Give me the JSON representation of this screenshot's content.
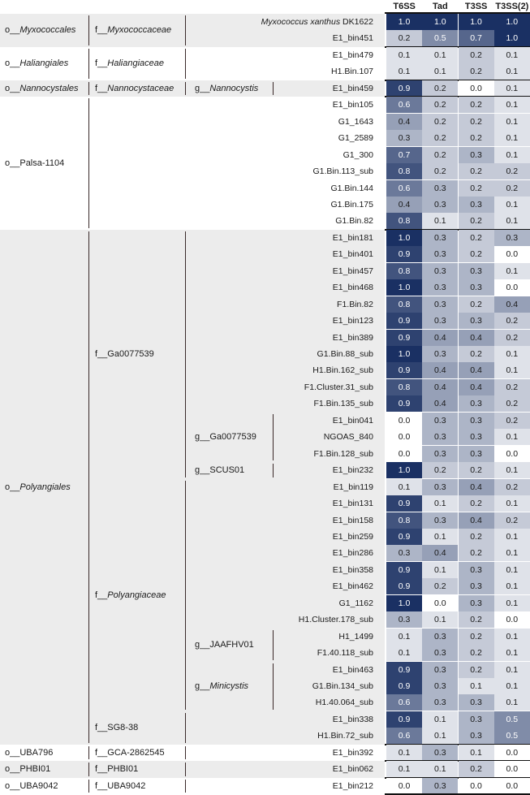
{
  "chart_data": {
    "type": "heatmap",
    "columns": [
      "T6SS",
      "Tad",
      "T3SS",
      "T3SS(2)"
    ],
    "groups": [
      {
        "order": "o__Myxococcales",
        "order_italic": true,
        "families": [
          {
            "family": "f__Myxococcaceae",
            "family_italic": true,
            "genera": [
              {
                "genus": "",
                "rows": [
                  {
                    "bin": "Myxococcus xanthus DK1622",
                    "bin_italic": true,
                    "values": [
                      1.0,
                      1.0,
                      1.0,
                      1.0
                    ]
                  },
                  {
                    "bin": "E1_bin451",
                    "values": [
                      0.2,
                      0.5,
                      0.7,
                      1.0
                    ]
                  }
                ]
              }
            ]
          }
        ]
      },
      {
        "order": "o__Haliangiales",
        "order_italic": true,
        "families": [
          {
            "family": "f__Haliangiaceae",
            "family_italic": true,
            "genera": [
              {
                "genus": "",
                "rows": [
                  {
                    "bin": "E1_bin479",
                    "values": [
                      0.1,
                      0.1,
                      0.2,
                      0.1
                    ]
                  },
                  {
                    "bin": "H1.Bin.107",
                    "values": [
                      0.1,
                      0.1,
                      0.2,
                      0.1
                    ]
                  }
                ]
              }
            ]
          }
        ]
      },
      {
        "order": "o__Nannocystales",
        "order_italic": true,
        "families": [
          {
            "family": "f__Nannocystaceae",
            "family_italic": true,
            "genera": [
              {
                "genus": "g__Nannocystis",
                "genus_italic": true,
                "rows": [
                  {
                    "bin": "E1_bin459",
                    "values": [
                      0.9,
                      0.2,
                      0.0,
                      0.1
                    ]
                  }
                ]
              }
            ]
          }
        ]
      },
      {
        "order": "o__Palsa-1104",
        "order_italic": false,
        "families": [
          {
            "family": "",
            "genera": [
              {
                "genus": "",
                "rows": [
                  {
                    "bin": "E1_bin105",
                    "values": [
                      0.6,
                      0.2,
                      0.2,
                      0.1
                    ]
                  },
                  {
                    "bin": "G1_1643",
                    "values": [
                      0.4,
                      0.2,
                      0.2,
                      0.1
                    ]
                  },
                  {
                    "bin": "G1_2589",
                    "values": [
                      0.3,
                      0.2,
                      0.2,
                      0.1
                    ]
                  },
                  {
                    "bin": "G1_300",
                    "values": [
                      0.7,
                      0.2,
                      0.3,
                      0.1
                    ]
                  },
                  {
                    "bin": "G1.Bin.113_sub",
                    "values": [
                      0.8,
                      0.2,
                      0.2,
                      0.2
                    ]
                  },
                  {
                    "bin": "G1.Bin.144",
                    "values": [
                      0.6,
                      0.3,
                      0.2,
                      0.2
                    ]
                  },
                  {
                    "bin": "G1.Bin.175",
                    "values": [
                      0.4,
                      0.3,
                      0.3,
                      0.1
                    ]
                  },
                  {
                    "bin": "G1.Bin.82",
                    "values": [
                      0.8,
                      0.1,
                      0.2,
                      0.1
                    ]
                  }
                ]
              }
            ]
          }
        ]
      },
      {
        "order": "o__Polyangiales",
        "order_italic": true,
        "families": [
          {
            "family": "f__Ga0077539",
            "family_italic": false,
            "genera": [
              {
                "genus": "",
                "rows": [
                  {
                    "bin": "E1_bin181",
                    "values": [
                      1.0,
                      0.3,
                      0.2,
                      0.3
                    ]
                  },
                  {
                    "bin": "E1_bin401",
                    "values": [
                      0.9,
                      0.3,
                      0.2,
                      0.0
                    ]
                  },
                  {
                    "bin": "E1_bin457",
                    "values": [
                      0.8,
                      0.3,
                      0.3,
                      0.1
                    ]
                  },
                  {
                    "bin": "E1_bin468",
                    "values": [
                      1.0,
                      0.3,
                      0.3,
                      0.0
                    ]
                  },
                  {
                    "bin": "F1.Bin.82",
                    "values": [
                      0.8,
                      0.3,
                      0.2,
                      0.4
                    ]
                  }
                ]
              },
              {
                "genus": "",
                "rows": [
                  {
                    "bin": "E1_bin123",
                    "values": [
                      0.9,
                      0.3,
                      0.3,
                      0.2
                    ]
                  },
                  {
                    "bin": "E1_bin389",
                    "values": [
                      0.9,
                      0.4,
                      0.4,
                      0.2
                    ]
                  },
                  {
                    "bin": "G1.Bin.88_sub",
                    "values": [
                      1.0,
                      0.3,
                      0.2,
                      0.1
                    ]
                  },
                  {
                    "bin": "H1.Bin.162_sub",
                    "values": [
                      0.9,
                      0.4,
                      0.4,
                      0.1
                    ]
                  },
                  {
                    "bin": "F1.Cluster.31_sub",
                    "values": [
                      0.8,
                      0.4,
                      0.4,
                      0.2
                    ]
                  },
                  {
                    "bin": "F1.Bin.135_sub",
                    "values": [
                      0.9,
                      0.4,
                      0.3,
                      0.2
                    ]
                  }
                ]
              },
              {
                "genus": "g__Ga0077539",
                "genus_italic": false,
                "rows": [
                  {
                    "bin": "E1_bin041",
                    "values": [
                      0.0,
                      0.3,
                      0.3,
                      0.2
                    ]
                  },
                  {
                    "bin": "NGOAS_840",
                    "values": [
                      0.0,
                      0.3,
                      0.3,
                      0.1
                    ]
                  },
                  {
                    "bin": "F1.Bin.128_sub",
                    "values": [
                      0.0,
                      0.3,
                      0.3,
                      0.0
                    ]
                  }
                ]
              },
              {
                "genus": "g__SCUS01",
                "genus_italic": false,
                "rows": [
                  {
                    "bin": "E1_bin232",
                    "values": [
                      1.0,
                      0.2,
                      0.2,
                      0.1
                    ]
                  }
                ]
              }
            ]
          },
          {
            "family": "f__Polyangiaceae",
            "family_italic": true,
            "genera": [
              {
                "genus": "",
                "rows": [
                  {
                    "bin": "E1_bin119",
                    "values": [
                      0.1,
                      0.3,
                      0.4,
                      0.2
                    ]
                  },
                  {
                    "bin": "E1_bin131",
                    "values": [
                      0.9,
                      0.1,
                      0.2,
                      0.1
                    ]
                  },
                  {
                    "bin": "E1_bin158",
                    "values": [
                      0.8,
                      0.3,
                      0.4,
                      0.2
                    ]
                  },
                  {
                    "bin": "E1_bin259",
                    "values": [
                      0.9,
                      0.1,
                      0.2,
                      0.1
                    ]
                  },
                  {
                    "bin": "E1_bin286",
                    "values": [
                      0.3,
                      0.4,
                      0.2,
                      0.1
                    ]
                  },
                  {
                    "bin": "E1_bin358",
                    "values": [
                      0.9,
                      0.1,
                      0.3,
                      0.1
                    ]
                  },
                  {
                    "bin": "E1_bin462",
                    "values": [
                      0.9,
                      0.2,
                      0.3,
                      0.1
                    ]
                  },
                  {
                    "bin": "G1_1162",
                    "values": [
                      1.0,
                      0.0,
                      0.3,
                      0.1
                    ]
                  },
                  {
                    "bin": "H1.Cluster.178_sub",
                    "values": [
                      0.3,
                      0.1,
                      0.2,
                      0.0
                    ]
                  }
                ]
              },
              {
                "genus": "g__JAAFHV01",
                "genus_italic": false,
                "rows": [
                  {
                    "bin": "H1_1499",
                    "values": [
                      0.1,
                      0.3,
                      0.2,
                      0.1
                    ]
                  },
                  {
                    "bin": "F1.40.118_sub",
                    "values": [
                      0.1,
                      0.3,
                      0.2,
                      0.1
                    ]
                  }
                ]
              },
              {
                "genus": "g__Minicystis",
                "genus_italic": true,
                "rows": [
                  {
                    "bin": "E1_bin463",
                    "values": [
                      0.9,
                      0.3,
                      0.2,
                      0.1
                    ]
                  },
                  {
                    "bin": "G1.Bin.134_sub",
                    "values": [
                      0.9,
                      0.3,
                      0.1,
                      0.1
                    ]
                  },
                  {
                    "bin": "H1.40.064_sub",
                    "values": [
                      0.6,
                      0.3,
                      0.3,
                      0.1
                    ]
                  }
                ]
              }
            ]
          },
          {
            "family": "f__SG8-38",
            "family_italic": false,
            "genera": [
              {
                "genus": "",
                "rows": [
                  {
                    "bin": "E1_bin338",
                    "values": [
                      0.9,
                      0.1,
                      0.3,
                      0.5
                    ]
                  },
                  {
                    "bin": "H1.Bin.72_sub",
                    "values": [
                      0.6,
                      0.1,
                      0.3,
                      0.5
                    ]
                  }
                ]
              }
            ]
          }
        ]
      },
      {
        "order": "o__UBA796",
        "order_italic": false,
        "families": [
          {
            "family": "f__GCA-2862545",
            "family_italic": false,
            "genera": [
              {
                "genus": "",
                "rows": [
                  {
                    "bin": "E1_bin392",
                    "values": [
                      0.1,
                      0.3,
                      0.1,
                      0.0
                    ]
                  }
                ]
              }
            ]
          }
        ]
      },
      {
        "order": "o__PHBI01",
        "order_italic": false,
        "families": [
          {
            "family": "f__PHBI01",
            "family_italic": false,
            "genera": [
              {
                "genus": "",
                "rows": [
                  {
                    "bin": "E1_bin062",
                    "values": [
                      0.1,
                      0.1,
                      0.2,
                      0.0
                    ]
                  }
                ]
              }
            ]
          }
        ]
      },
      {
        "order": "o__UBA9042",
        "order_italic": false,
        "families": [
          {
            "family": "f__UBA9042",
            "family_italic": false,
            "genera": [
              {
                "genus": "",
                "rows": [
                  {
                    "bin": "E1_bin212",
                    "values": [
                      0.0,
                      0.3,
                      0.0,
                      0.0
                    ]
                  }
                ]
              }
            ]
          }
        ]
      }
    ],
    "color_scale": {
      "low": "#ffffff",
      "high": "#1a3063",
      "domain": [
        0,
        1
      ]
    },
    "band_colors": [
      "#ececec",
      "#ffffff"
    ]
  }
}
